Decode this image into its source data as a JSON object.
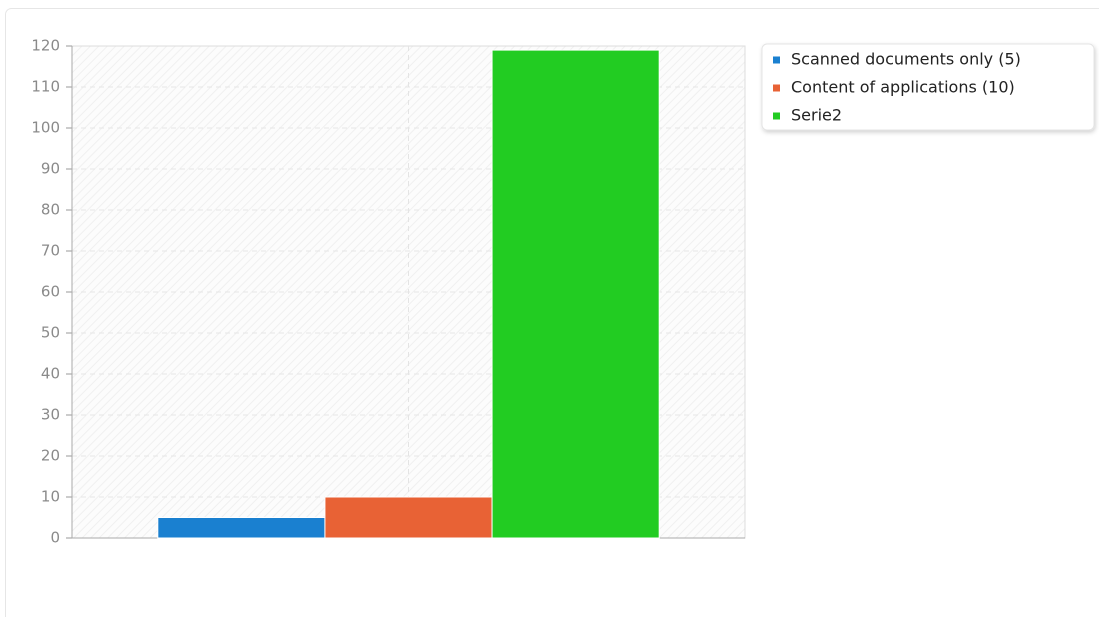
{
  "chart_data": {
    "type": "bar",
    "categories": [
      null
    ],
    "series": [
      {
        "name": "Scanned documents only (5)",
        "color": "#1a80d0",
        "values": [
          5
        ]
      },
      {
        "name": "Content of applications (10)",
        "color": "#e86235",
        "values": [
          10
        ]
      },
      {
        "name": "Serie2",
        "color": "#22cc22",
        "values": [
          119
        ]
      }
    ],
    "ylim": [
      0,
      120
    ],
    "yticks": [
      0,
      10,
      20,
      30,
      40,
      50,
      60,
      70,
      80,
      90,
      100,
      110,
      120
    ],
    "grid": true,
    "legend": "right"
  }
}
